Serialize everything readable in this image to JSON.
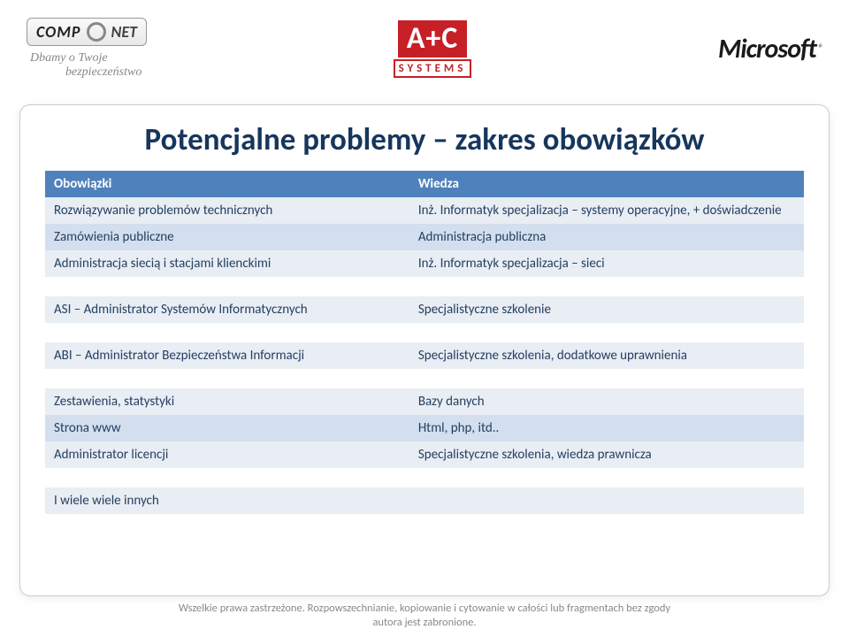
{
  "logos": {
    "compnet_comp": "COMP",
    "compnet_net": "NET",
    "tagline_line1": "Dbamy o Twoje",
    "tagline_line2": "bezpieczeństwo",
    "ac_main": "A+C",
    "ac_sub": "SYSTEMS",
    "microsoft": "Microsoft",
    "reg": "®"
  },
  "title": "Potencjalne problemy – zakres obowiązków",
  "colors": {
    "header_bg": "#4f81bd",
    "header_fg": "#ffffff",
    "row_bg": "#e9edf4",
    "row_alt_bg": "#d3dfee",
    "row_fg": "#244061",
    "title_color": "#17365d",
    "ac_red": "#c62026",
    "footer_color": "#888888"
  },
  "table": {
    "header": {
      "c1": "Obowiązki",
      "c2": "Wiedza"
    },
    "groups": [
      {
        "rows": [
          {
            "c1": "Rozwiązywanie problemów technicznych",
            "c2": "Inż. Informatyk specjalizacja – systemy operacyjne, + doświadczenie"
          },
          {
            "c1": "Zamówienia publiczne",
            "c2": "Administracja publiczna"
          },
          {
            "c1": "Administracja siecią i stacjami klienckimi",
            "c2": "Inż. Informatyk specjalizacja – sieci"
          }
        ]
      },
      {
        "rows": [
          {
            "c1": "ASI – Administrator Systemów Informatycznych",
            "c2": "Specjalistyczne szkolenie"
          }
        ]
      },
      {
        "rows": [
          {
            "c1": "ABI – Administrator Bezpieczeństwa Informacji",
            "c2": "Specjalistyczne szkolenia, dodatkowe uprawnienia"
          }
        ]
      },
      {
        "rows": [
          {
            "c1": "Zestawienia, statystyki",
            "c2": "Bazy danych"
          },
          {
            "c1": "Strona www",
            "c2": "Html, php, itd.."
          },
          {
            "c1": "Administrator licencji",
            "c2": "Specjalistyczne szkolenia, wiedza prawnicza"
          }
        ]
      },
      {
        "rows": [
          {
            "c1": "I wiele wiele innych",
            "c2": ""
          }
        ]
      }
    ]
  },
  "footer": {
    "line1": "Wszelkie prawa zastrzeżone. Rozpowszechnianie, kopiowanie i cytowanie w całości lub fragmentach bez zgody",
    "line2": "autora jest zabronione."
  }
}
